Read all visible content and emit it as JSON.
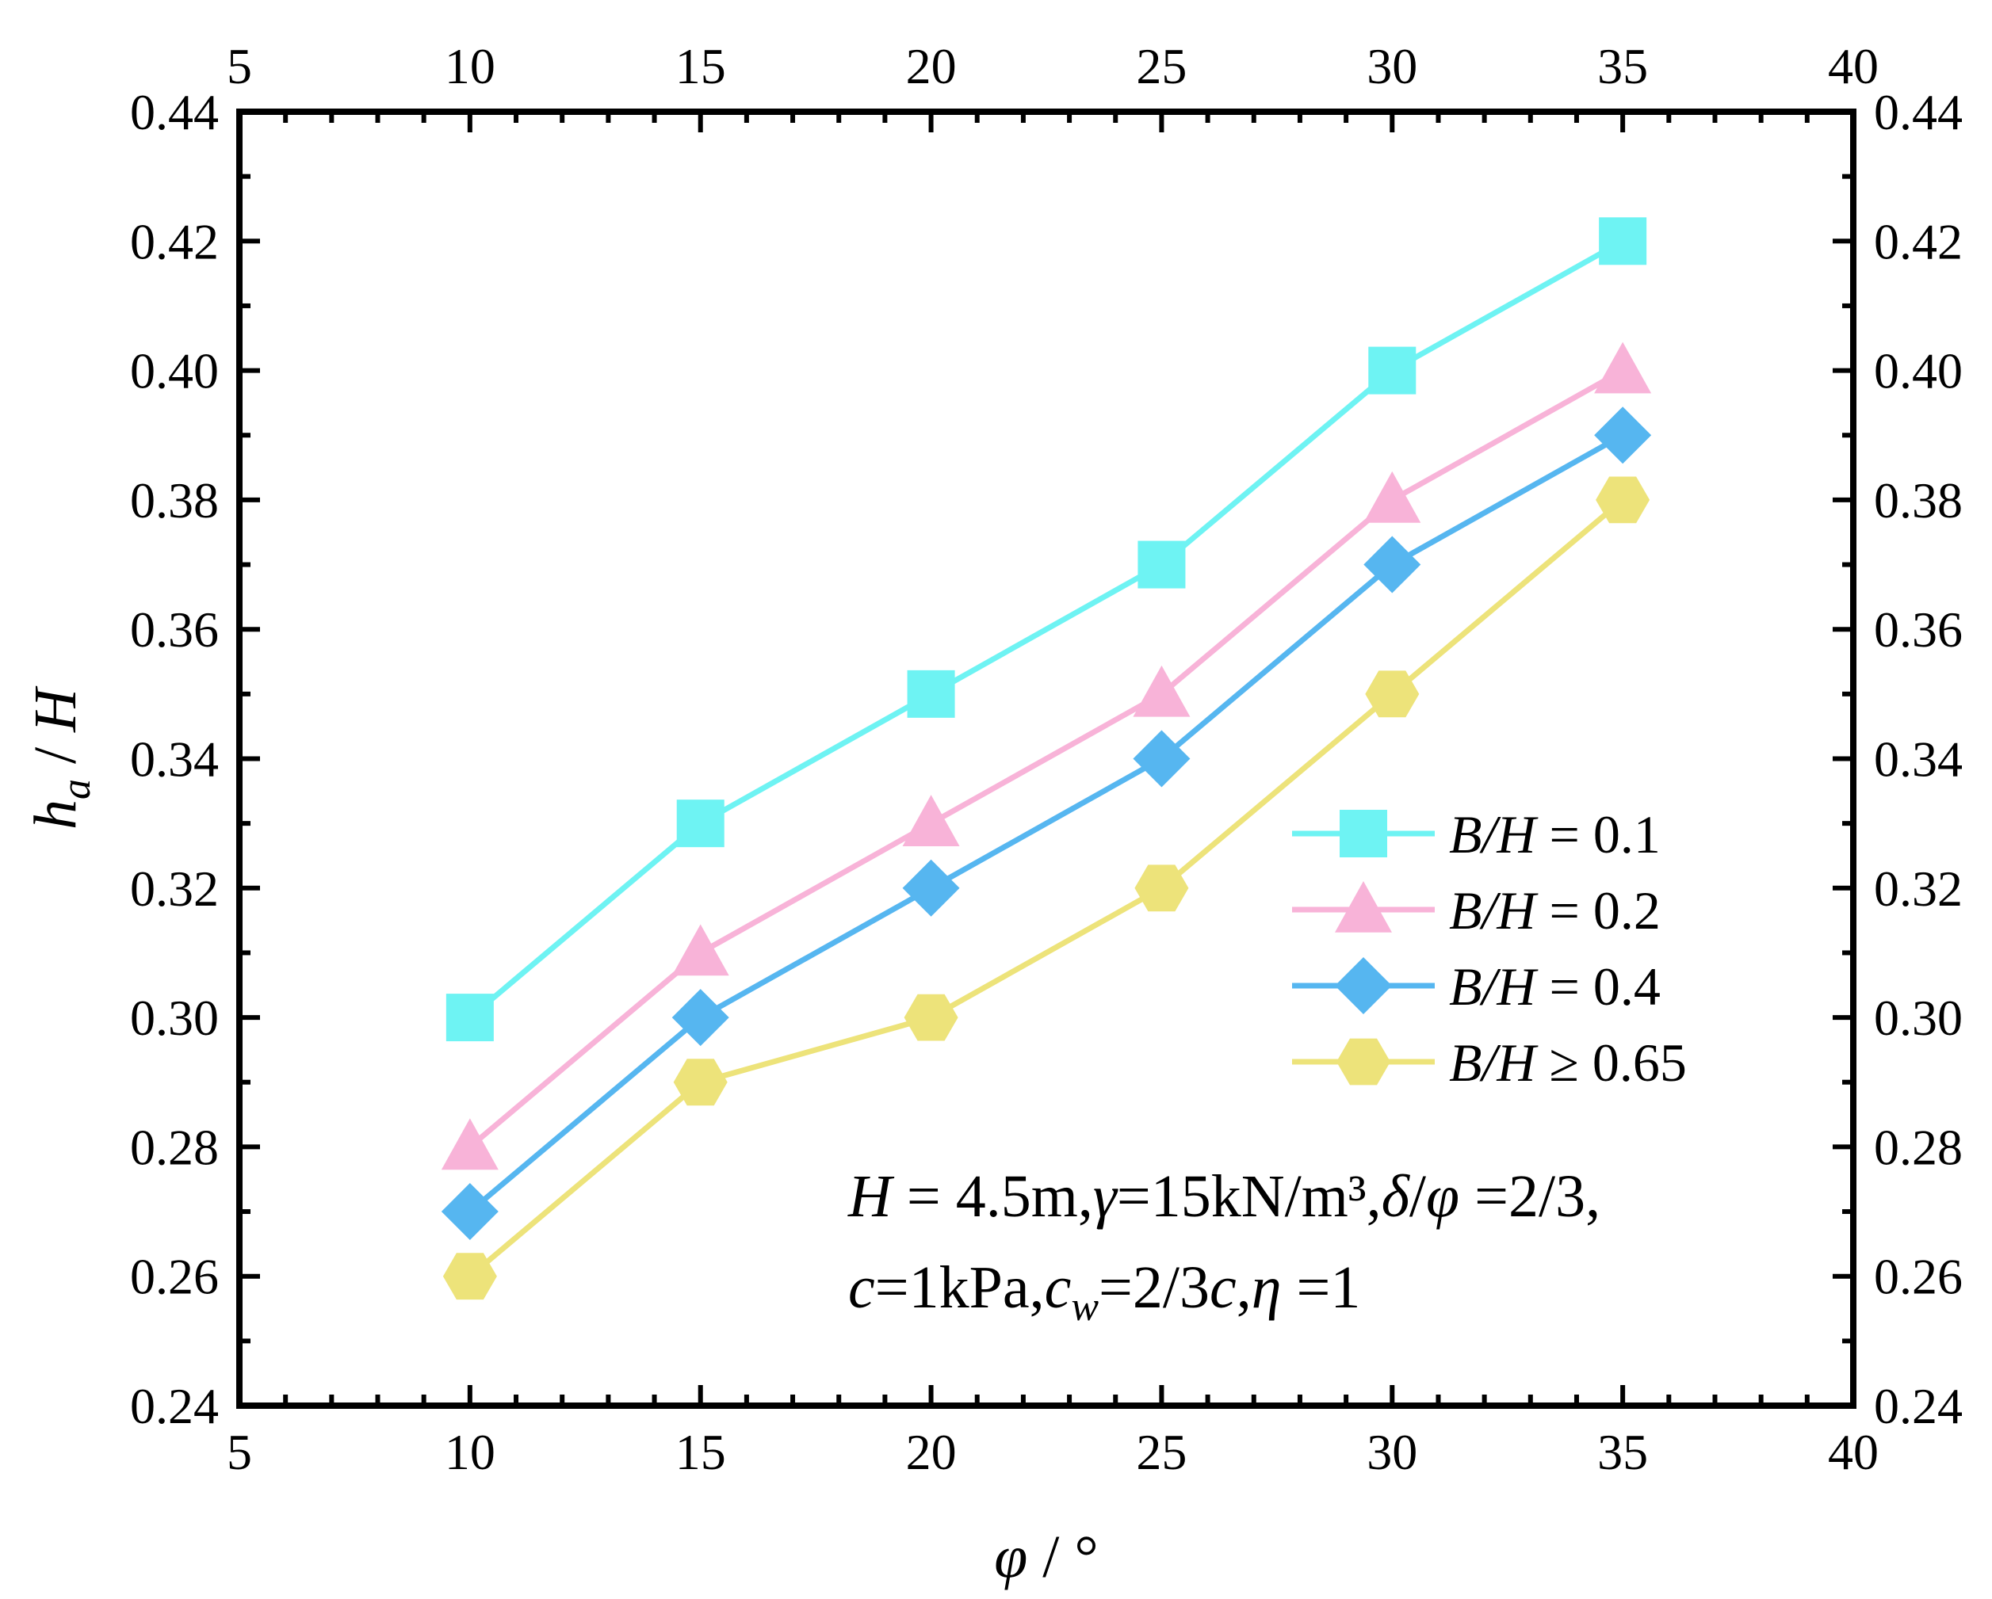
{
  "chart_data": {
    "type": "line",
    "x": [
      10,
      15,
      20,
      25,
      30,
      35
    ],
    "xlim": [
      5,
      40
    ],
    "ylim": [
      0.24,
      0.44
    ],
    "xticks": [
      "5",
      "10",
      "15",
      "20",
      "25",
      "30",
      "35",
      "40"
    ],
    "yticks": [
      "0.24",
      "0.26",
      "0.28",
      "0.30",
      "0.32",
      "0.34",
      "0.36",
      "0.38",
      "0.40",
      "0.42",
      "0.44"
    ],
    "xlabel": {
      "symbol": "φ",
      "unit": " / °"
    },
    "ylabel": {
      "symbol": "h",
      "sub": "a",
      "rest": " / ",
      "H": "H"
    },
    "series": [
      {
        "name": "B/H = 0.1",
        "var": "B/H",
        "op": " = 0.1",
        "color": "#6EF3F3",
        "marker": "square",
        "values": [
          0.3,
          0.33,
          0.35,
          0.37,
          0.4,
          0.42
        ]
      },
      {
        "name": "B/H = 0.2",
        "var": "B/H",
        "op": " = 0.2",
        "color": "#F8B3D8",
        "marker": "triangle",
        "values": [
          0.28,
          0.31,
          0.33,
          0.35,
          0.38,
          0.4
        ]
      },
      {
        "name": "B/H = 0.4",
        "var": "B/H",
        "op": " = 0.4",
        "color": "#56B6F0",
        "marker": "diamond",
        "values": [
          0.27,
          0.3,
          0.32,
          0.34,
          0.37,
          0.39
        ]
      },
      {
        "name": "B/H ≥ 0.65",
        "var": "B/H",
        "op": " ≥ 0.65",
        "color": "#EDE37A",
        "marker": "hexagon",
        "values": [
          0.26,
          0.29,
          0.3,
          0.32,
          0.35,
          0.38
        ]
      }
    ],
    "annotation": {
      "line1": {
        "H": "H",
        "h_val": " = 4.5m,",
        "gamma": "γ",
        "gamma_val": "=15kN/m³,",
        "delta": "δ",
        "slash": "/",
        "phi": "φ",
        "ratio": " =2/3,"
      },
      "line2": {
        "c": "c",
        "c_val": "=1kPa,",
        "cw": "c",
        "cw_sub": "w",
        "cw_val": "=2/3",
        "c2": "c",
        "comma": ",",
        "eta": "η",
        "eta_val": " =1"
      }
    }
  }
}
